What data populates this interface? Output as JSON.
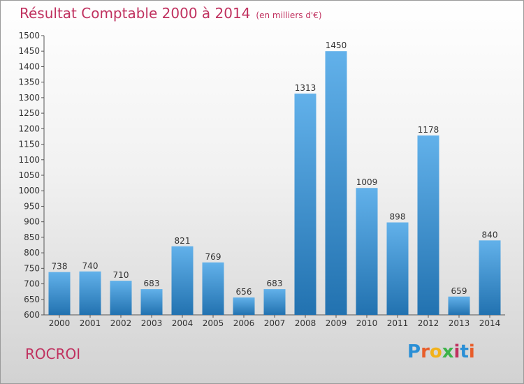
{
  "chart_data": {
    "type": "bar",
    "title": "Résultat Comptable 2000 à 2014",
    "subtitle": "(en milliers d'€)",
    "categories": [
      "2000",
      "2001",
      "2002",
      "2003",
      "2004",
      "2005",
      "2006",
      "2007",
      "2008",
      "2009",
      "2010",
      "2011",
      "2012",
      "2013",
      "2014"
    ],
    "values": [
      738,
      740,
      710,
      683,
      821,
      769,
      656,
      683,
      1313,
      1450,
      1009,
      898,
      1178,
      659,
      840
    ],
    "ylim": [
      600,
      1500
    ],
    "yticks": [
      600,
      650,
      700,
      750,
      800,
      850,
      900,
      950,
      1000,
      1050,
      1100,
      1150,
      1200,
      1250,
      1300,
      1350,
      1400,
      1450,
      1500
    ],
    "grid": false,
    "colors": {
      "bar_top": "#62b1ea",
      "bar_bottom": "#2272b0",
      "title": "#c0315f"
    }
  },
  "footer": {
    "commune": "ROCROI",
    "brand": "Proxiti"
  }
}
